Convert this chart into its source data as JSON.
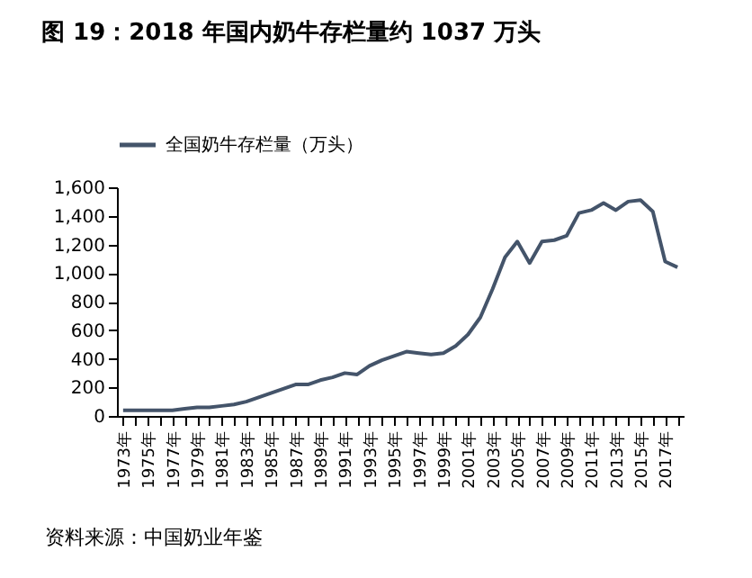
{
  "chart_data": {
    "type": "line",
    "title": "图 19：2018 年国内奶牛存栏量约 1037 万头",
    "categories": [
      "1973年",
      null,
      "1975年",
      null,
      "1977年",
      null,
      "1979年",
      null,
      "1981年",
      null,
      "1983年",
      null,
      "1985年",
      null,
      "1987年",
      null,
      "1989年",
      null,
      "1991年",
      null,
      "1993年",
      null,
      "1995年",
      null,
      "1997年",
      null,
      "1999年",
      null,
      "2001年",
      null,
      "2003年",
      null,
      "2005年",
      null,
      "2007年",
      null,
      "2009年",
      null,
      "2011年",
      null,
      "2013年",
      null,
      "2015年",
      null,
      "2017年",
      null
    ],
    "series": [
      {
        "name": "全国奶牛存栏量（万头）",
        "color": "#44546a",
        "values": [
          40,
          40,
          40,
          40,
          40,
          50,
          60,
          60,
          70,
          80,
          100,
          130,
          160,
          190,
          220,
          220,
          250,
          270,
          300,
          290,
          350,
          390,
          420,
          450,
          440,
          430,
          440,
          490,
          570,
          690,
          890,
          1110,
          1220,
          1070,
          1220,
          1230,
          1260,
          1420,
          1440,
          1490,
          1440,
          1500,
          1510,
          1430,
          1080,
          1040
        ]
      }
    ],
    "ylim": [
      0,
      1600
    ],
    "yticks": [
      0,
      200,
      400,
      600,
      800,
      {
        "value": 1000,
        "label": "1,000"
      },
      {
        "value": 1200,
        "label": "1,200"
      },
      {
        "value": 1400,
        "label": "1,400"
      },
      {
        "value": 1600,
        "label": "1,600"
      }
    ],
    "grid": false,
    "legend": "top",
    "annotations": [
      "资料来源：中国奶业年鉴"
    ]
  }
}
